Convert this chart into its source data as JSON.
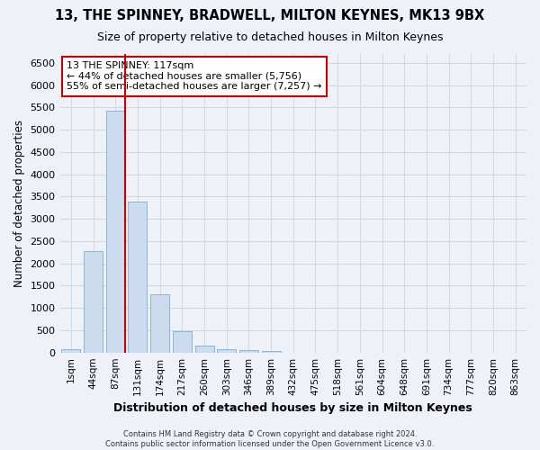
{
  "title_line1": "13, THE SPINNEY, BRADWELL, MILTON KEYNES, MK13 9BX",
  "title_line2": "Size of property relative to detached houses in Milton Keynes",
  "xlabel": "Distribution of detached houses by size in Milton Keynes",
  "ylabel": "Number of detached properties",
  "footer_line1": "Contains HM Land Registry data © Crown copyright and database right 2024.",
  "footer_line2": "Contains public sector information licensed under the Open Government Licence v3.0.",
  "bin_labels": [
    "1sqm",
    "44sqm",
    "87sqm",
    "131sqm",
    "174sqm",
    "217sqm",
    "260sqm",
    "303sqm",
    "346sqm",
    "389sqm",
    "432sqm",
    "475sqm",
    "518sqm",
    "561sqm",
    "604sqm",
    "648sqm",
    "691sqm",
    "734sqm",
    "777sqm",
    "820sqm",
    "863sqm"
  ],
  "bar_values": [
    75,
    2280,
    5430,
    3380,
    1310,
    480,
    160,
    80,
    50,
    30,
    0,
    0,
    0,
    0,
    0,
    0,
    0,
    0,
    0,
    0,
    0
  ],
  "bar_color": "#ccdcee",
  "bar_edge_color": "#7aafd4",
  "grid_color": "#d0d8e8",
  "vline_color": "#cc0000",
  "annotation_text": "13 THE SPINNEY: 117sqm\n← 44% of detached houses are smaller (5,756)\n55% of semi-detached houses are larger (7,257) →",
  "annotation_box_facecolor": "#ffffff",
  "annotation_box_edgecolor": "#cc0000",
  "ylim": [
    0,
    6700
  ],
  "yticks": [
    0,
    500,
    1000,
    1500,
    2000,
    2500,
    3000,
    3500,
    4000,
    4500,
    5000,
    5500,
    6000,
    6500
  ],
  "background_color": "#eef2f8"
}
